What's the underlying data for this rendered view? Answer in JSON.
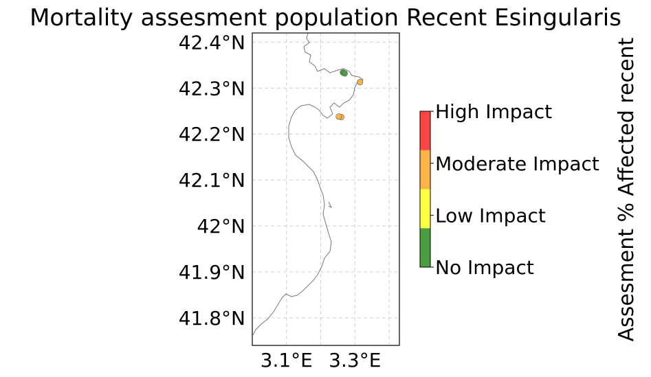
{
  "chart_data": {
    "type": "map-scatter",
    "title": "Mortality assesment population Recent Esingularis",
    "lat_ticks": [
      "42.4°N",
      "42.3°N",
      "42.2°N",
      "42.1°N",
      "42°N",
      "41.9°N",
      "41.8°N"
    ],
    "lat_values": [
      42.4,
      42.3,
      42.2,
      42.1,
      42.0,
      41.9,
      41.8
    ],
    "lon_ticks": [
      "3.1°E",
      "3.3°E"
    ],
    "lon_values": [
      3.1,
      3.3
    ],
    "lon_range": [
      3.0,
      3.43
    ],
    "lat_range": [
      41.74,
      42.42
    ],
    "grid": true,
    "points": [
      {
        "lon": 3.265,
        "lat": 42.334,
        "category": "No Impact"
      },
      {
        "lon": 3.27,
        "lat": 42.332,
        "category": "No Impact"
      },
      {
        "lon": 3.315,
        "lat": 42.313,
        "category": "Moderate Impact"
      },
      {
        "lon": 3.26,
        "lat": 42.237,
        "category": "Moderate Impact"
      },
      {
        "lon": 3.253,
        "lat": 42.238,
        "category": "Moderate Impact"
      }
    ],
    "colorbar": {
      "label": "Assesment % Affected recent",
      "categories": [
        "No Impact",
        "Low Impact",
        "Moderate Impact",
        "High Impact"
      ],
      "colors": [
        "#4a9e3f",
        "#ffff44",
        "#ffb347",
        "#ff4444"
      ]
    }
  }
}
